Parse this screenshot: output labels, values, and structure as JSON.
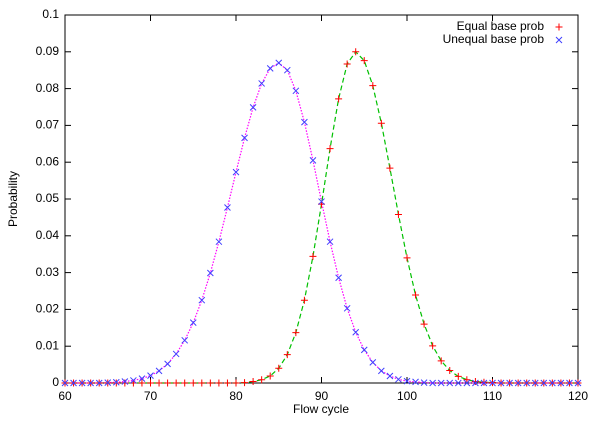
{
  "chart_data": {
    "type": "scatter",
    "xlabel": "Flow cycle",
    "ylabel": "Probability",
    "x": [
      60,
      61,
      62,
      63,
      64,
      65,
      66,
      67,
      68,
      69,
      70,
      71,
      72,
      73,
      74,
      75,
      76,
      77,
      78,
      79,
      80,
      81,
      82,
      83,
      84,
      85,
      86,
      87,
      88,
      89,
      90,
      91,
      92,
      93,
      94,
      95,
      96,
      97,
      98,
      99,
      100,
      101,
      102,
      103,
      104,
      105,
      106,
      107,
      108,
      109,
      110,
      111,
      112,
      113,
      114,
      115,
      116,
      117,
      118,
      119,
      120
    ],
    "series": [
      {
        "name": "Equal base prob",
        "color": "#ff0000",
        "marker": "plus",
        "line_color": "#00c000",
        "line_dash": "5,3",
        "values": [
          0,
          0,
          0,
          0,
          0,
          0,
          0,
          0,
          0,
          0,
          0,
          0,
          0,
          0,
          0,
          0,
          0,
          0,
          0,
          0,
          0,
          0.0001,
          0.0004,
          0.0009,
          0.0019,
          0.004,
          0.0077,
          0.0137,
          0.0225,
          0.0344,
          0.0486,
          0.0637,
          0.0772,
          0.0867,
          0.09,
          0.0876,
          0.0808,
          0.0706,
          0.0584,
          0.0458,
          0.034,
          0.0239,
          0.016,
          0.0101,
          0.006,
          0.0034,
          0.0018,
          0.0009,
          0.0004,
          0.0002,
          0.0001,
          0,
          0,
          0,
          0,
          0,
          0,
          0,
          0,
          0,
          0
        ]
      },
      {
        "name": "Unequal base prob",
        "color": "#4040ff",
        "marker": "cross",
        "line_color": "#ff00ff",
        "line_dash": "1.5,1.5",
        "values": [
          0,
          0,
          0,
          0,
          0,
          0.0001,
          0.0002,
          0.0004,
          0.0007,
          0.0012,
          0.002,
          0.0033,
          0.0052,
          0.0079,
          0.0116,
          0.0164,
          0.0225,
          0.0299,
          0.0384,
          0.0477,
          0.0573,
          0.0666,
          0.0749,
          0.0814,
          0.0855,
          0.087,
          0.085,
          0.0794,
          0.0709,
          0.0605,
          0.0493,
          0.0384,
          0.0286,
          0.0203,
          0.0138,
          0.009,
          0.0056,
          0.0033,
          0.0019,
          0.001,
          0.0005,
          0.0003,
          0.0001,
          0,
          0,
          0,
          0,
          0,
          0,
          0,
          0,
          0,
          0,
          0,
          0,
          0,
          0,
          0,
          0,
          0,
          0
        ]
      }
    ],
    "xlim": [
      60,
      120
    ],
    "xticks": [
      60,
      70,
      80,
      90,
      100,
      110,
      120
    ],
    "ylim": [
      0,
      0.1
    ],
    "yticks": [
      0,
      0.01,
      0.02,
      0.03,
      0.04,
      0.05,
      0.06,
      0.07,
      0.08,
      0.09,
      0.1
    ],
    "legend": "top-right"
  }
}
